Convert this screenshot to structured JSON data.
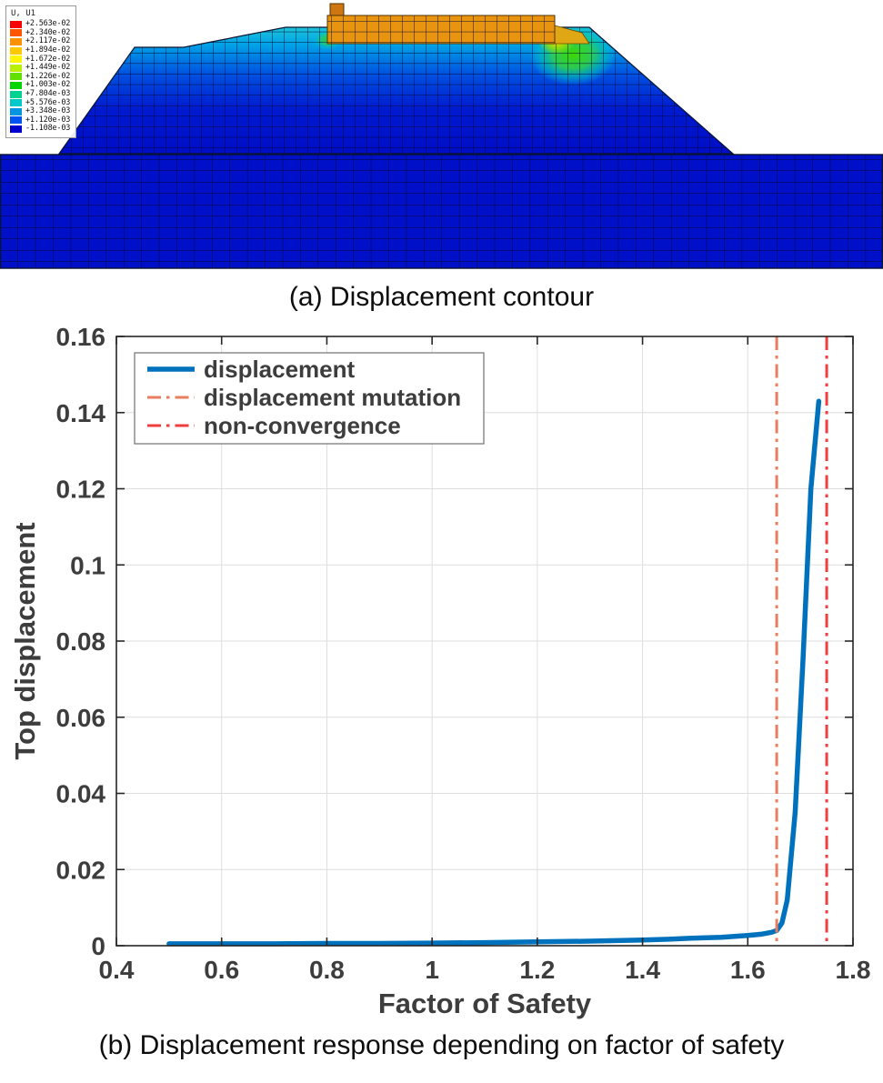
{
  "figure_a": {
    "caption": "(a) Displacement contour",
    "contour_legend": {
      "title": "U, U1",
      "entries": [
        {
          "color": "#fa0000",
          "label": "+2.563e-02"
        },
        {
          "color": "#ff5500",
          "label": "+2.340e-02"
        },
        {
          "color": "#ff9100",
          "label": "+2.117e-02"
        },
        {
          "color": "#ffc800",
          "label": "+1.894e-02"
        },
        {
          "color": "#fff500",
          "label": "+1.672e-02"
        },
        {
          "color": "#b9f000",
          "label": "+1.449e-02"
        },
        {
          "color": "#62e100",
          "label": "+1.226e-02"
        },
        {
          "color": "#00d500",
          "label": "+1.003e-02"
        },
        {
          "color": "#00d292",
          "label": "+7.804e-03"
        },
        {
          "color": "#00c9c9",
          "label": "+5.576e-03"
        },
        {
          "color": "#0095e1",
          "label": "+3.348e-03"
        },
        {
          "color": "#0055f0",
          "label": "+1.120e-03"
        },
        {
          "color": "#0000cd",
          "label": "-1.108e-03"
        }
      ]
    }
  },
  "figure_b": {
    "caption": "(b) Displacement response depending on factor of safety"
  },
  "chart_data": {
    "type": "line",
    "title": "",
    "xlabel": "Factor of Safety",
    "ylabel": "Top displacement",
    "xlim": [
      0.4,
      1.8
    ],
    "ylim": [
      0,
      0.16
    ],
    "xticks": [
      0.4,
      0.6,
      0.8,
      1,
      1.2,
      1.4,
      1.6,
      1.8
    ],
    "xtick_labels": [
      "0.4",
      "0.6",
      "0.8",
      "1",
      "1.2",
      "1.4",
      "1.6",
      "1.8"
    ],
    "yticks": [
      0,
      0.02,
      0.04,
      0.06,
      0.08,
      0.1,
      0.12,
      0.14,
      0.16
    ],
    "ytick_labels": [
      "0",
      "0.02",
      "0.04",
      "0.06",
      "0.08",
      "0.1",
      "0.12",
      "0.14",
      "0.16"
    ],
    "grid": true,
    "legend_position": "top-left",
    "series": [
      {
        "name": "displacement",
        "kind": "line",
        "color": "#0072bd",
        "linestyle": "solid",
        "linewidth": 5.5,
        "x": [
          0.5,
          0.6,
          0.7,
          0.8,
          0.9,
          1.0,
          1.1,
          1.2,
          1.3,
          1.4,
          1.45,
          1.5,
          1.55,
          1.6,
          1.625,
          1.645,
          1.655,
          1.665,
          1.675,
          1.69,
          1.705,
          1.72,
          1.735
        ],
        "y": [
          0.0005,
          0.0005,
          0.0005,
          0.0006,
          0.0006,
          0.0007,
          0.0008,
          0.001,
          0.0012,
          0.0015,
          0.0017,
          0.002,
          0.0022,
          0.0027,
          0.003,
          0.0035,
          0.004,
          0.006,
          0.012,
          0.035,
          0.075,
          0.12,
          0.143
        ]
      },
      {
        "name": "displacement mutation",
        "kind": "vline",
        "color": "#e87d5f",
        "linestyle": "dash-dot",
        "linewidth": 3,
        "x": 1.655
      },
      {
        "name": "non-convergence",
        "kind": "vline",
        "color": "#f23d3d",
        "linestyle": "dash-dot",
        "linewidth": 3,
        "x": 1.75
      }
    ]
  }
}
